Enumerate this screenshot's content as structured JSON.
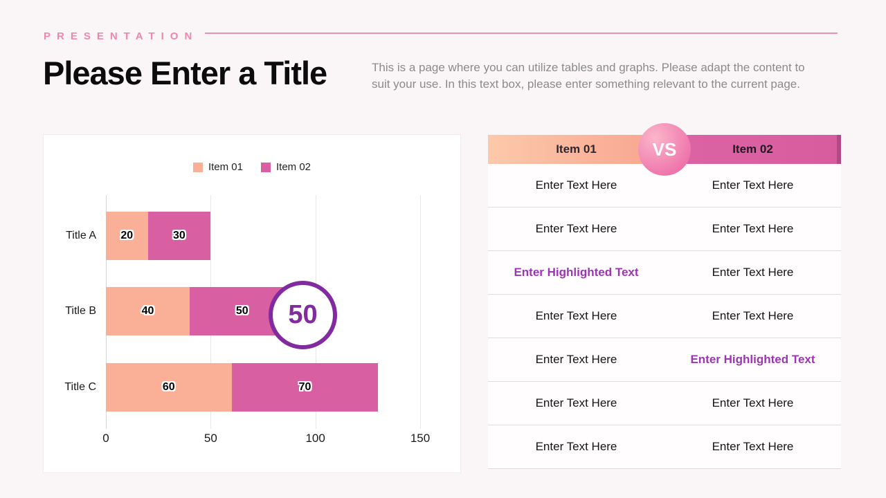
{
  "page": {
    "eyebrow": "PRESENTATION",
    "title": "Please Enter a Title",
    "description": "This is a page where you can utilize tables and graphs. Please adapt the content to suit your use. In this text box, please enter something relevant to the current page."
  },
  "colors": {
    "background": "#faf6f8",
    "accent_pink": "#ee8fae",
    "peach": "#f9b096",
    "magenta": "#d95fa3",
    "badge_purple": "#822ba0",
    "highlight_purple": "#9c34b4"
  },
  "chart_data": {
    "type": "bar",
    "orientation": "horizontal",
    "stacked": true,
    "categories": [
      "Title A",
      "Title B",
      "Title C"
    ],
    "series": [
      {
        "name": "Item 01",
        "color": "#f9b096",
        "values": [
          20,
          40,
          60
        ]
      },
      {
        "name": "Item 02",
        "color": "#d95fa3",
        "values": [
          30,
          50,
          70
        ]
      }
    ],
    "xlim": [
      0,
      150
    ],
    "x_ticks": [
      0,
      50,
      100,
      150
    ],
    "legend_position": "top",
    "grid": true,
    "badge_value": "50"
  },
  "table": {
    "header": {
      "left": "Item 01",
      "right": "Item 02",
      "vs": "VS"
    },
    "rows": [
      {
        "left": "Enter Text Here",
        "right": "Enter Text Here",
        "left_highlight": false,
        "right_highlight": false
      },
      {
        "left": "Enter Text Here",
        "right": "Enter Text Here",
        "left_highlight": false,
        "right_highlight": false
      },
      {
        "left": "Enter Highlighted Text",
        "right": "Enter Text Here",
        "left_highlight": true,
        "right_highlight": false
      },
      {
        "left": "Enter Text Here",
        "right": "Enter Text Here",
        "left_highlight": false,
        "right_highlight": false
      },
      {
        "left": "Enter Text Here",
        "right": "Enter Highlighted Text",
        "left_highlight": false,
        "right_highlight": true
      },
      {
        "left": "Enter Text Here",
        "right": "Enter Text Here",
        "left_highlight": false,
        "right_highlight": false
      },
      {
        "left": "Enter Text Here",
        "right": "Enter Text Here",
        "left_highlight": false,
        "right_highlight": false
      }
    ]
  }
}
